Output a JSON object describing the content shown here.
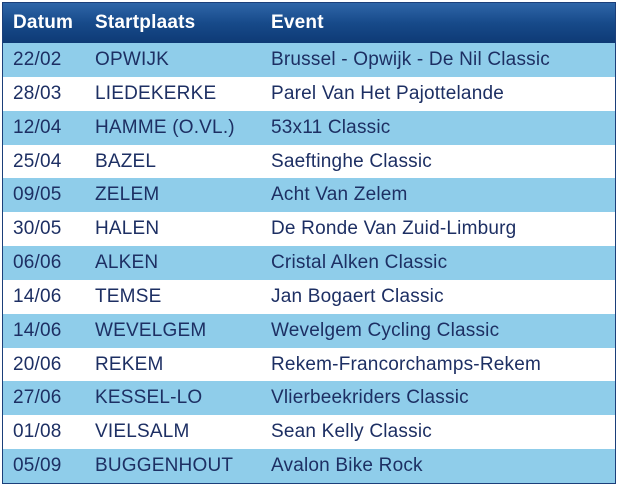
{
  "table": {
    "headers": [
      "Datum",
      "Startplaats",
      "Event"
    ],
    "rows": [
      [
        "22/02",
        "OPWIJK",
        "Brussel - Opwijk - De Nil Classic"
      ],
      [
        "28/03",
        "LIEDEKERKE",
        "Parel Van Het Pajottelande"
      ],
      [
        "12/04",
        "HAMME (O.VL.)",
        "53x11 Classic"
      ],
      [
        "25/04",
        "BAZEL",
        "Saeftinghe Classic"
      ],
      [
        "09/05",
        "ZELEM",
        "Acht Van Zelem"
      ],
      [
        "30/05",
        "HALEN",
        "De Ronde Van Zuid-Limburg"
      ],
      [
        "06/06",
        "ALKEN",
        "Cristal Alken Classic"
      ],
      [
        "14/06",
        "TEMSE",
        "Jan Bogaert Classic"
      ],
      [
        "14/06",
        "WEVELGEM",
        "Wevelgem Cycling Classic"
      ],
      [
        "20/06",
        "REKEM",
        "Rekem-Francorchamps-Rekem"
      ],
      [
        "27/06",
        "KESSEL-LO",
        "Vlierbeekriders Classic"
      ],
      [
        "01/08",
        "VIELSALM",
        "Sean Kelly Classic"
      ],
      [
        "05/09",
        "BUGGENHOUT",
        "Avalon Bike Rock"
      ]
    ]
  }
}
